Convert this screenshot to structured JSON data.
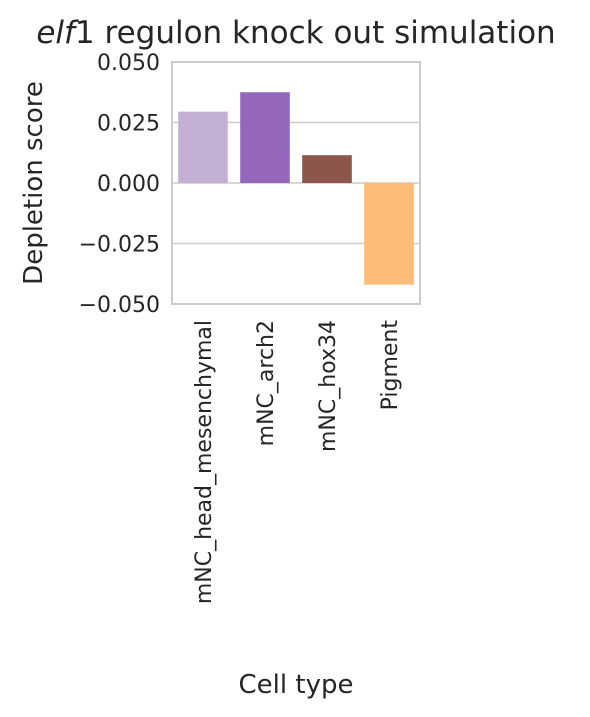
{
  "chart_data": {
    "type": "bar",
    "title_italic": "elf",
    "title_rest": "1 regulon knock out simulation",
    "xlabel": "Cell type",
    "ylabel": "Depletion score",
    "categories": [
      "mNC_head_mesenchymal",
      "mNC_arch2",
      "mNC_hox34",
      "Pigment"
    ],
    "values": [
      0.0295,
      0.0375,
      0.0115,
      -0.042
    ],
    "colors": [
      "#c5b0d5",
      "#9467bd",
      "#8c564b",
      "#ffbb78"
    ],
    "ylim": [
      -0.05,
      0.05
    ],
    "yticks": [
      0.05,
      0.025,
      0.0,
      -0.025,
      -0.05
    ],
    "ytick_labels": [
      "0.050",
      "0.025",
      "0.000",
      "−0.025",
      "−0.050"
    ],
    "grid": true,
    "legend": "none"
  }
}
